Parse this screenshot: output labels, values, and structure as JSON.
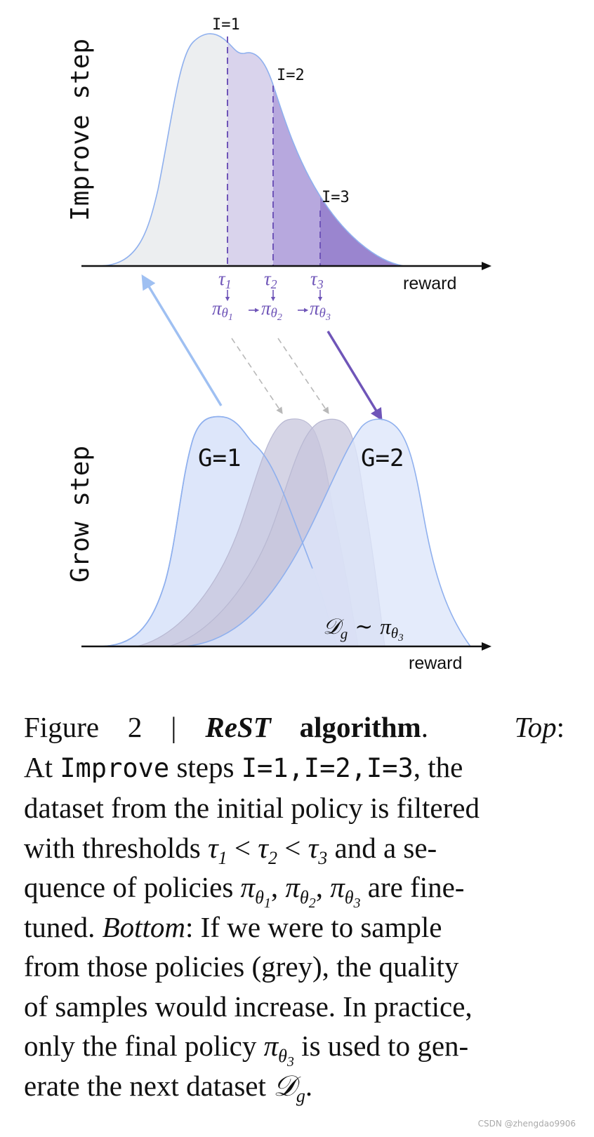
{
  "top_panel": {
    "ylabel": "Improve step",
    "xlabel": "reward",
    "iteration_labels": [
      "I=1",
      "I=2",
      "I=3"
    ],
    "tau_labels": [
      "τ1",
      "τ2",
      "τ3"
    ],
    "tau_symbol": "τ",
    "tau_subs": [
      "1",
      "2",
      "3"
    ],
    "policy_symbol": "π",
    "policy_sub": "θ",
    "policy_subs": [
      "1",
      "2",
      "3"
    ]
  },
  "bottom_panel": {
    "ylabel": "Grow step",
    "xlabel": "reward",
    "grow_labels": [
      "G=1",
      "G=2"
    ],
    "dataset_symbol": "𝒟",
    "dataset_sub": "g",
    "tilde": "∼",
    "dataset_policy_symbol": "π",
    "dataset_policy_sub": "θ",
    "dataset_policy_subsub": "3"
  },
  "colors": {
    "axis": "#111111",
    "base_fill": "#eceef0",
    "outline_blue": "#8fb0ee",
    "purple_1": "#d9d3ec",
    "purple_2": "#b7a8de",
    "purple_3": "#9a85cf",
    "purple_dark": "#6f55b8",
    "grow_fill": "#dde6fa",
    "grey_policy_fill": "#c7c5dc",
    "arrow_blue": "#9fc0f2",
    "arrow_grey": "#b8b8b8"
  },
  "caption": {
    "fig_label": "Figure 2 | ",
    "title_italic": "ReST",
    "title_bold": " algorithm",
    "period": ".",
    "top_label": "Top",
    "colon": ":",
    "line2_a": "At ",
    "line2_improve": "Improve",
    "line2_b": " steps ",
    "line2_steps": "I=1,I=2,I=3",
    "line2_c": ", the",
    "line3": "dataset from the initial policy is filtered",
    "line4_a": "with thresholds ",
    "lt": " < ",
    "line4_b": " and a se-",
    "line5_a": "quence of policies ",
    "comma": ", ",
    "line5_b": " are fine-",
    "line6_a": "tuned. ",
    "bottom_label": "Bottom",
    "line6_b": ": If we were to sample",
    "line7": "from those policies (grey), the quality",
    "line8": "of samples would increase. In practice,",
    "line9_a": "only the final policy ",
    "line9_b": " is used to gen-",
    "line10_a": "erate the next dataset ",
    "line10_b": "."
  },
  "watermark": "CSDN @zhengdao9906"
}
